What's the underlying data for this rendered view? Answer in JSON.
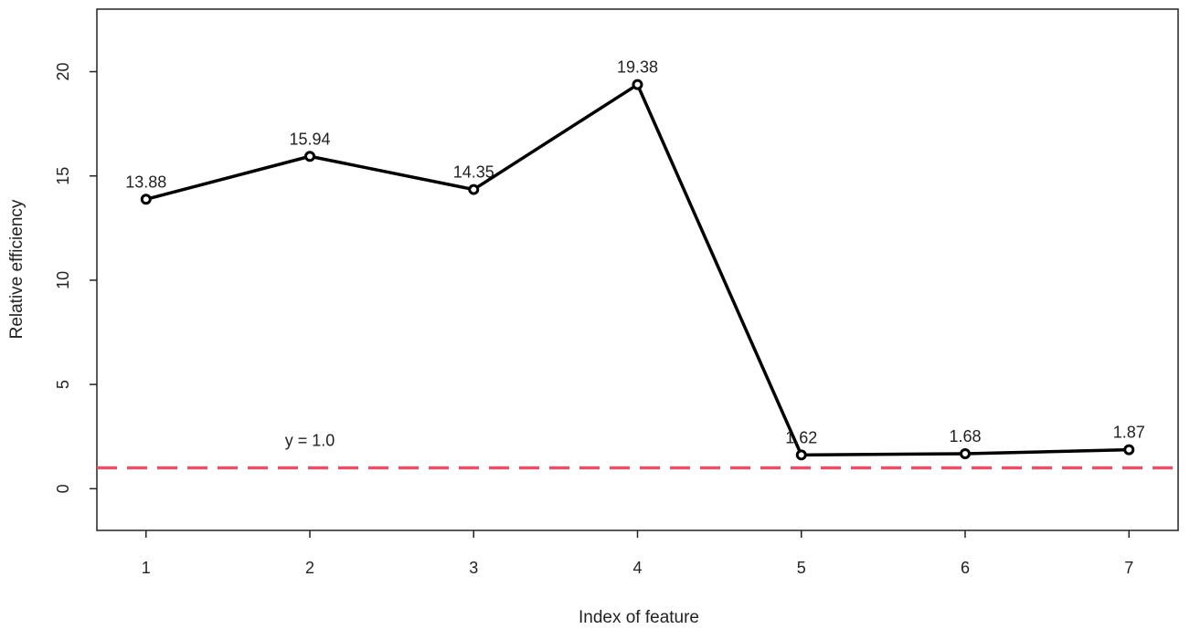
{
  "chart_data": {
    "type": "line",
    "title": "",
    "xlabel": "Index of feature",
    "ylabel": "Relative efficiency",
    "x": [
      1,
      2,
      3,
      4,
      5,
      6,
      7
    ],
    "xlim": [
      0.7,
      7.3
    ],
    "ylim": [
      -2,
      23
    ],
    "xticks": [
      1,
      2,
      3,
      4,
      5,
      6,
      7
    ],
    "yticks": [
      0,
      5,
      10,
      15,
      20
    ],
    "grid": false,
    "series": [
      {
        "values": [
          13.88,
          15.94,
          14.35,
          19.38,
          1.62,
          1.68,
          1.87
        ],
        "data_labels": [
          "13.88",
          "15.94",
          "14.35",
          "19.38",
          "1.62",
          "1.68",
          "1.87"
        ],
        "color": "#000000"
      }
    ],
    "reference_line": {
      "y": 1.0,
      "label": "y = 1.0",
      "label_x": 2,
      "color": "#DF536B",
      "style": "dashed"
    }
  }
}
